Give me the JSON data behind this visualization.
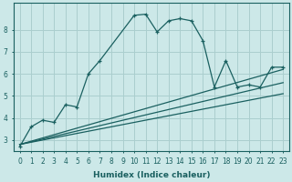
{
  "xlabel": "Humidex (Indice chaleur)",
  "ylabel": "",
  "xlim": [
    -0.5,
    23.5
  ],
  "ylim": [
    2.5,
    9.2
  ],
  "yticks": [
    3,
    4,
    5,
    6,
    7,
    8
  ],
  "xticks": [
    0,
    1,
    2,
    3,
    4,
    5,
    6,
    7,
    8,
    9,
    10,
    11,
    12,
    13,
    14,
    15,
    16,
    17,
    18,
    19,
    20,
    21,
    22,
    23
  ],
  "background_color": "#cce8e8",
  "grid_color": "#aacece",
  "line_color": "#1a6060",
  "line1": {
    "x": [
      0,
      1,
      2,
      3,
      4,
      5,
      6,
      7,
      10,
      11,
      12,
      13,
      14,
      15,
      16,
      17,
      18,
      19,
      20,
      21,
      22,
      23
    ],
    "y": [
      2.7,
      3.6,
      3.9,
      3.8,
      4.6,
      4.5,
      6.0,
      6.6,
      8.65,
      8.7,
      7.9,
      8.4,
      8.5,
      8.4,
      7.5,
      5.4,
      6.6,
      5.4,
      5.5,
      5.4,
      6.3,
      6.3
    ]
  },
  "line2": {
    "x": [
      0,
      23
    ],
    "y": [
      2.8,
      6.2
    ]
  },
  "line3": {
    "x": [
      0,
      23
    ],
    "y": [
      2.8,
      5.6
    ]
  },
  "line4": {
    "x": [
      0,
      23
    ],
    "y": [
      2.8,
      5.1
    ]
  }
}
